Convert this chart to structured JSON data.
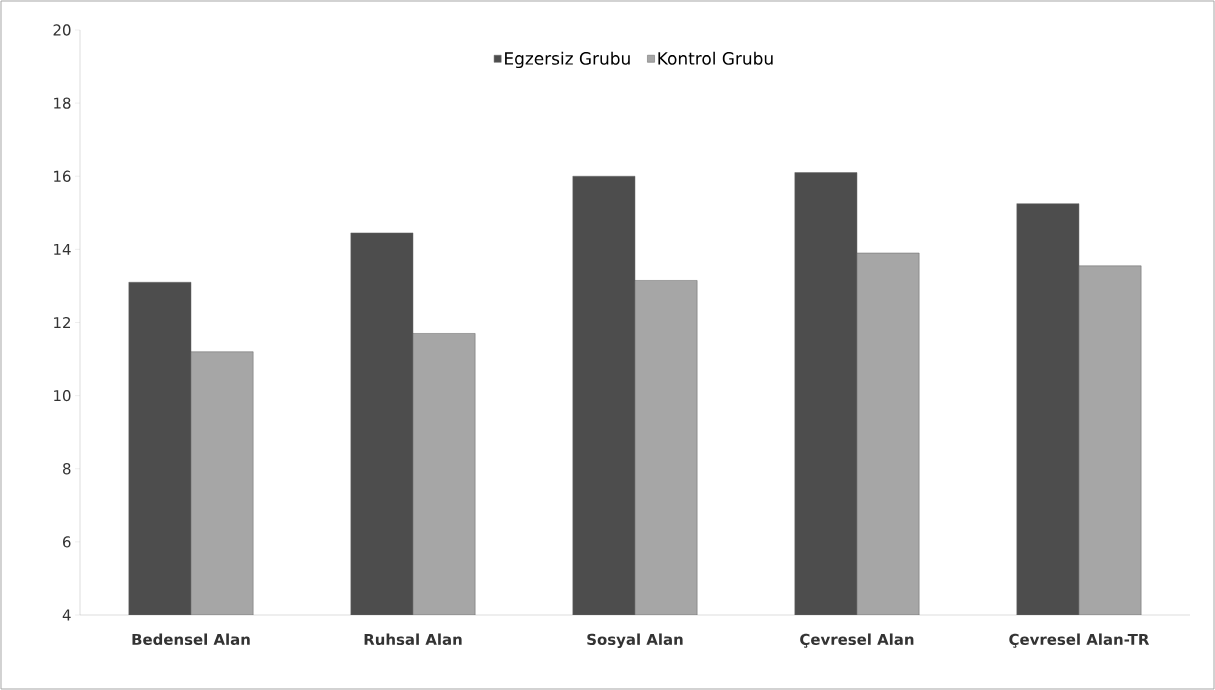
{
  "chart_data": {
    "type": "bar",
    "categories": [
      "Bedensel Alan",
      "Ruhsal Alan",
      "Sosyal Alan",
      "Çevresel Alan",
      "Çevresel Alan-TR"
    ],
    "series": [
      {
        "name": "Egzersiz Grubu",
        "color": "#4d4d4d",
        "values": [
          13.1,
          14.45,
          16.0,
          16.1,
          15.25
        ]
      },
      {
        "name": "Kontrol Grubu",
        "color": "#a6a6a6",
        "values": [
          11.2,
          11.7,
          13.15,
          13.9,
          13.55
        ]
      }
    ],
    "ylim": [
      4,
      20
    ],
    "yticks": [
      4,
      6,
      8,
      10,
      12,
      14,
      16,
      18,
      20
    ],
    "legend": "top"
  }
}
